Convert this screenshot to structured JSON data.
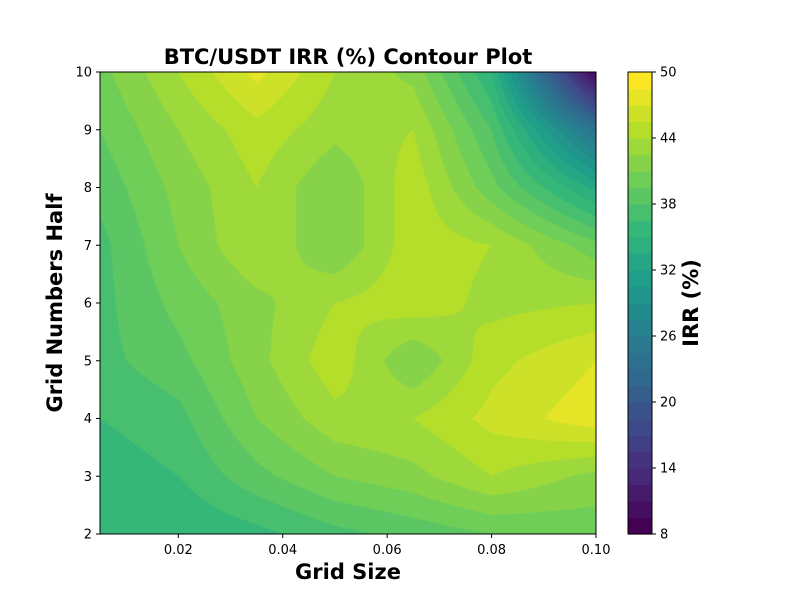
{
  "chart_data": {
    "type": "heatmap",
    "subtype": "filled-contour",
    "title": "BTC/USDT IRR (%) Contour Plot",
    "xlabel": "Grid Size",
    "ylabel": "Grid Numbers Half",
    "colorbar_label": "IRR (%)",
    "colormap": "viridis",
    "xlim": [
      0.005,
      0.1
    ],
    "ylim": [
      2,
      10
    ],
    "x_ticks": [
      "0.02",
      "0.04",
      "0.06",
      "0.08",
      "0.10"
    ],
    "x_tick_values": [
      0.02,
      0.04,
      0.06,
      0.08,
      0.1
    ],
    "y_ticks": [
      "2",
      "3",
      "4",
      "5",
      "6",
      "7",
      "8",
      "9",
      "10"
    ],
    "y_tick_values": [
      2,
      3,
      4,
      5,
      6,
      7,
      8,
      9,
      10
    ],
    "colorbar_range": [
      8,
      50
    ],
    "colorbar_ticks": [
      "8",
      "14",
      "20",
      "26",
      "32",
      "38",
      "44",
      "50"
    ],
    "colorbar_tick_values": [
      8,
      14,
      20,
      26,
      32,
      38,
      44,
      50
    ],
    "levels": [
      8,
      9.5,
      11,
      12.5,
      14,
      15.5,
      17,
      18.5,
      20,
      21.5,
      23,
      24.5,
      26,
      27.5,
      29,
      30.5,
      32,
      33.5,
      35,
      36.5,
      38,
      39.5,
      41,
      42.5,
      44,
      45.5,
      47,
      48.5,
      50
    ],
    "x": [
      0.005,
      0.02,
      0.035,
      0.05,
      0.065,
      0.08,
      0.1
    ],
    "y": [
      2,
      3,
      4,
      5,
      6,
      7,
      8,
      9,
      10
    ],
    "z": [
      [
        35,
        35,
        36,
        37.5,
        38.5,
        39.5,
        40
      ],
      [
        35.5,
        36.5,
        39,
        41,
        42,
        44,
        42
      ],
      [
        36.5,
        37.5,
        41,
        43.5,
        44,
        46,
        48
      ],
      [
        37.5,
        39,
        42,
        45,
        41,
        45,
        47
      ],
      [
        37.5,
        40,
        42,
        44,
        45,
        43.5,
        44
      ],
      [
        37.5,
        41,
        44,
        41,
        45,
        44,
        40
      ],
      [
        38.5,
        41.5,
        44,
        41,
        45,
        40,
        33
      ],
      [
        39.5,
        42.5,
        45,
        43,
        44,
        38,
        24
      ],
      [
        40.5,
        44,
        47.5,
        44,
        42,
        35,
        9
      ]
    ]
  }
}
